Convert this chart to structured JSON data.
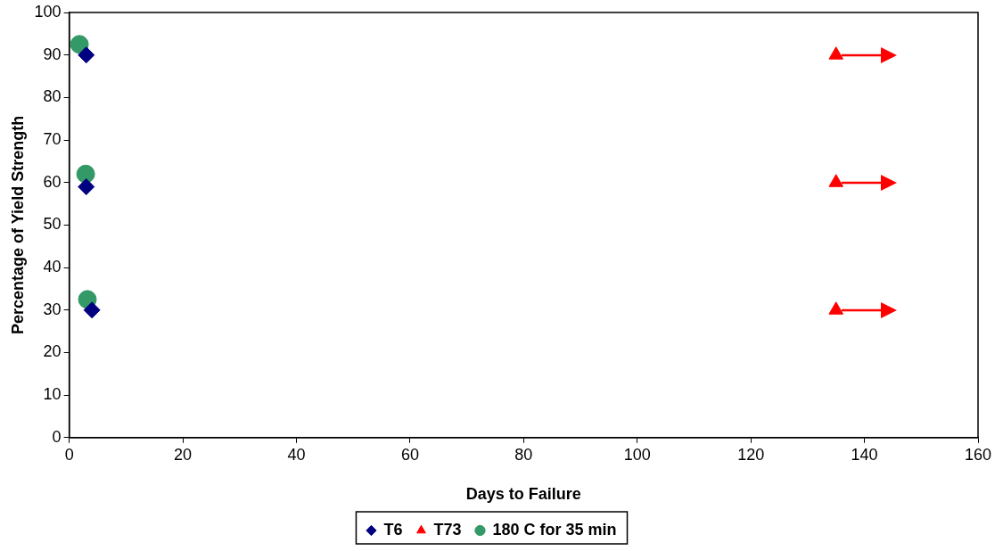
{
  "chart_data": {
    "type": "scatter",
    "xlabel": "Days to Failure",
    "ylabel": "Percentage of Yield Strength",
    "series": [
      {
        "name": "T6",
        "color": "#000080",
        "x": [
          3,
          3,
          4
        ],
        "values": [
          90,
          59,
          30
        ]
      },
      {
        "name": "T73",
        "color": "#ff0000",
        "x": [
          135,
          135,
          135
        ],
        "values": [
          90,
          60,
          30
        ],
        "marker": "triangle"
      },
      {
        "name": "180 C for 35 min",
        "color": "#339966",
        "x": [
          1.8,
          2.9,
          3.2
        ],
        "values": [
          92.5,
          62,
          32.5
        ],
        "marker": "circle"
      }
    ],
    "xlim": [
      0,
      160
    ],
    "xticks": [
      0,
      20,
      40,
      60,
      80,
      100,
      120,
      140,
      160
    ],
    "ylim": [
      0,
      100
    ],
    "yticks": [
      0,
      10,
      20,
      30,
      40,
      50,
      60,
      70,
      80,
      90,
      100
    ],
    "grid": false,
    "legend": "bottom",
    "marker": "diamond"
  }
}
